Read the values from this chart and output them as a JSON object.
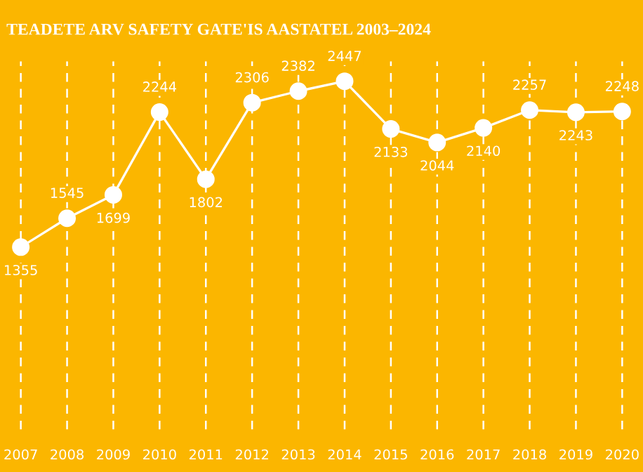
{
  "chart_data": {
    "type": "line",
    "title": "TEADETE ARV SAFETY GATE'IS AASTATEL 2003–2024",
    "categories": [
      "2007",
      "2008",
      "2009",
      "2010",
      "2011",
      "2012",
      "2013",
      "2014",
      "2015",
      "2016",
      "2017",
      "2018",
      "2019",
      "2020"
    ],
    "series": [
      {
        "color": "#ffffff",
        "values": [
          1355,
          1545,
          1699,
          2244,
          1802,
          2306,
          2382,
          2447,
          2133,
          2044,
          2140,
          2257,
          2243,
          2248
        ]
      }
    ],
    "data_labels": true,
    "grid": "x",
    "marker": "circle",
    "line_style": "solid",
    "legend": false,
    "tick_labels": "x"
  }
}
